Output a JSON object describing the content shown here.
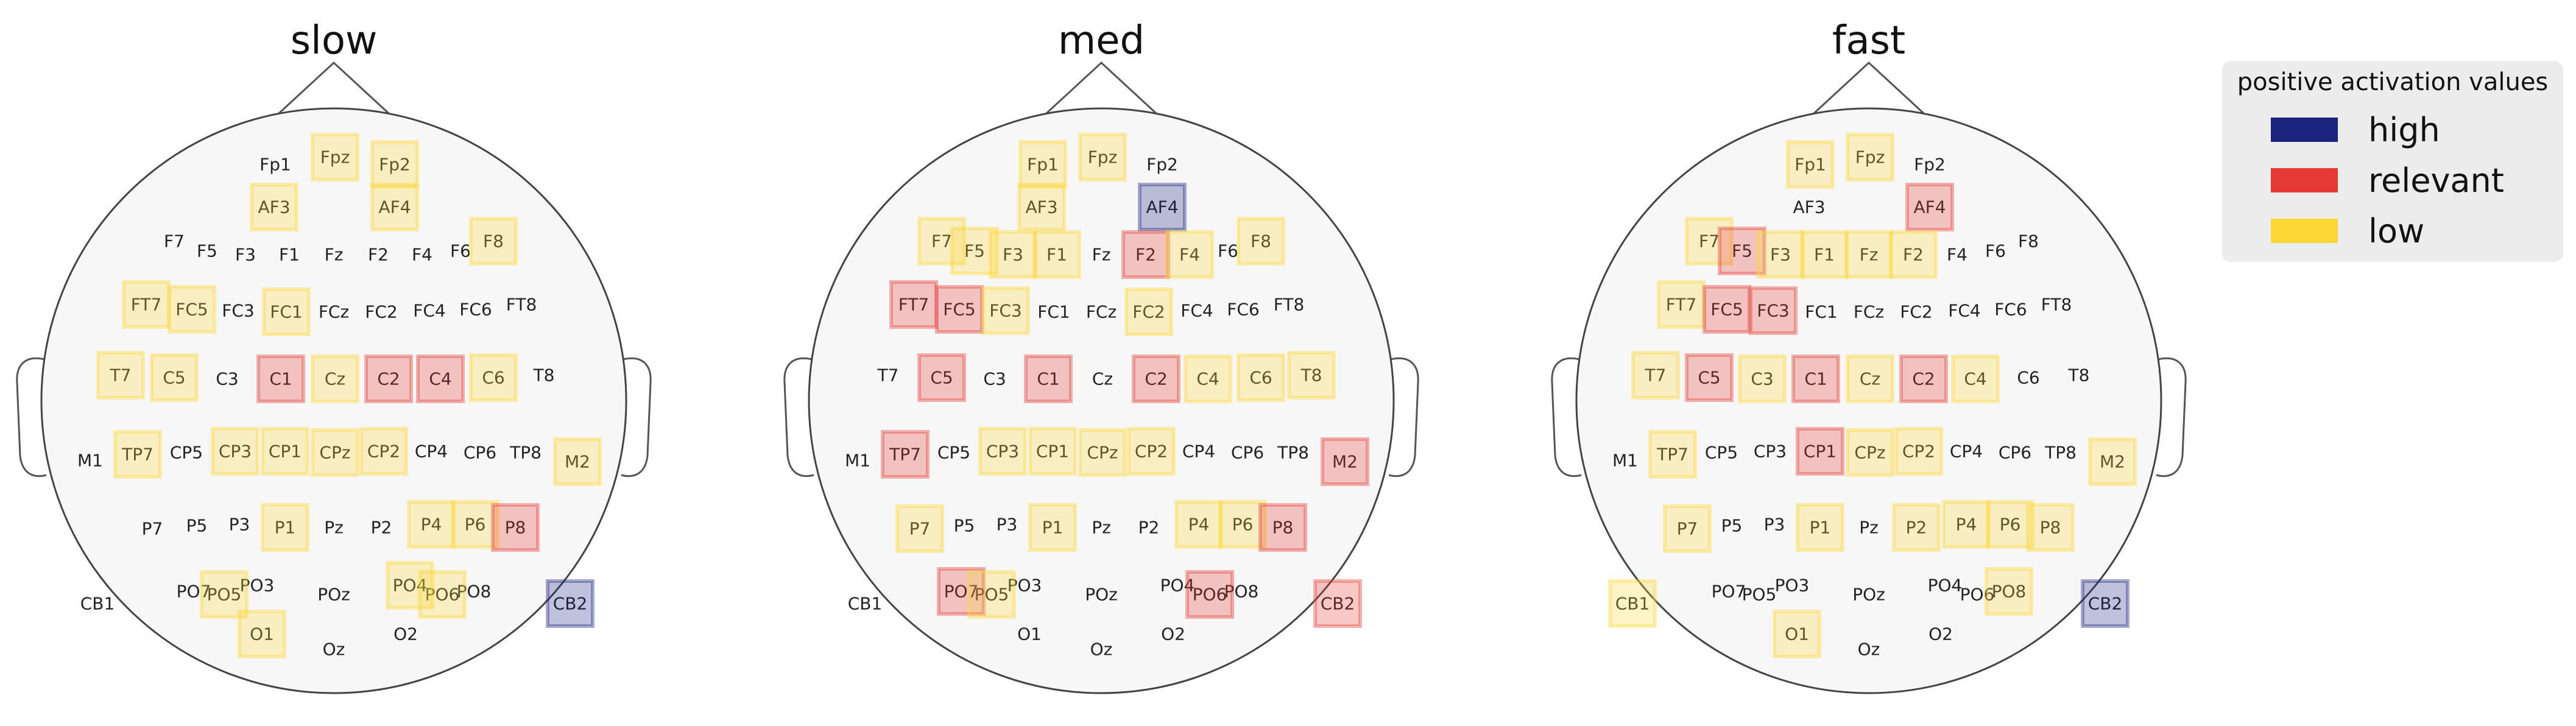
{
  "legend": {
    "title": "positive activation values",
    "items": [
      {
        "label": "high",
        "color": "#1a237e"
      },
      {
        "label": "relevant",
        "color": "#e53935"
      },
      {
        "label": "low",
        "color": "#fdd835"
      }
    ]
  },
  "channels": [
    "Fp1",
    "Fpz",
    "Fp2",
    "AF3",
    "AF4",
    "F7",
    "F5",
    "F3",
    "F1",
    "Fz",
    "F2",
    "F4",
    "F6",
    "F8",
    "FT7",
    "FC5",
    "FC3",
    "FC1",
    "FCz",
    "FC2",
    "FC4",
    "FC6",
    "FT8",
    "T7",
    "C5",
    "C3",
    "C1",
    "Cz",
    "C2",
    "C4",
    "C6",
    "T8",
    "M1",
    "TP7",
    "CP5",
    "CP3",
    "CP1",
    "CPz",
    "CP2",
    "CP4",
    "CP6",
    "TP8",
    "M2",
    "P7",
    "P5",
    "P3",
    "P1",
    "Pz",
    "P2",
    "P4",
    "P6",
    "P8",
    "CB1",
    "PO7",
    "PO5",
    "PO3",
    "POz",
    "PO4",
    "PO6",
    "PO8",
    "CB2",
    "O1",
    "Oz",
    "O2"
  ],
  "panels": [
    {
      "title": "slow",
      "markers": [
        {
          "ch": "Fpz",
          "level": "low"
        },
        {
          "ch": "Fp2",
          "level": "low"
        },
        {
          "ch": "AF3",
          "level": "low"
        },
        {
          "ch": "AF4",
          "level": "low"
        },
        {
          "ch": "F8",
          "level": "low"
        },
        {
          "ch": "FT7",
          "level": "low"
        },
        {
          "ch": "FC5",
          "level": "low"
        },
        {
          "ch": "FC1",
          "level": "low"
        },
        {
          "ch": "T7",
          "level": "low"
        },
        {
          "ch": "C5",
          "level": "low"
        },
        {
          "ch": "C1",
          "level": "relevant"
        },
        {
          "ch": "Cz",
          "level": "low"
        },
        {
          "ch": "C2",
          "level": "relevant"
        },
        {
          "ch": "C4",
          "level": "relevant"
        },
        {
          "ch": "C6",
          "level": "low"
        },
        {
          "ch": "TP7",
          "level": "low"
        },
        {
          "ch": "CP3",
          "level": "low"
        },
        {
          "ch": "CP1",
          "level": "low"
        },
        {
          "ch": "CPz",
          "level": "low"
        },
        {
          "ch": "CP2",
          "level": "low"
        },
        {
          "ch": "M2",
          "level": "low"
        },
        {
          "ch": "P1",
          "level": "low"
        },
        {
          "ch": "P4",
          "level": "low"
        },
        {
          "ch": "P6",
          "level": "low"
        },
        {
          "ch": "P8",
          "level": "relevant"
        },
        {
          "ch": "PO5",
          "level": "low"
        },
        {
          "ch": "PO4",
          "level": "low"
        },
        {
          "ch": "PO6",
          "level": "low"
        },
        {
          "ch": "O1",
          "level": "low"
        },
        {
          "ch": "CB2",
          "level": "high"
        }
      ]
    },
    {
      "title": "med",
      "markers": [
        {
          "ch": "Fp1",
          "level": "low"
        },
        {
          "ch": "Fpz",
          "level": "low"
        },
        {
          "ch": "AF3",
          "level": "low"
        },
        {
          "ch": "AF4",
          "level": "high"
        },
        {
          "ch": "F7",
          "level": "low"
        },
        {
          "ch": "F5",
          "level": "low"
        },
        {
          "ch": "F3",
          "level": "low"
        },
        {
          "ch": "F1",
          "level": "low"
        },
        {
          "ch": "F2",
          "level": "relevant"
        },
        {
          "ch": "F4",
          "level": "low"
        },
        {
          "ch": "F8",
          "level": "low"
        },
        {
          "ch": "FT7",
          "level": "relevant"
        },
        {
          "ch": "FC5",
          "level": "relevant"
        },
        {
          "ch": "FC3",
          "level": "low"
        },
        {
          "ch": "FC2",
          "level": "low"
        },
        {
          "ch": "C5",
          "level": "relevant"
        },
        {
          "ch": "C1",
          "level": "relevant"
        },
        {
          "ch": "C2",
          "level": "relevant"
        },
        {
          "ch": "C4",
          "level": "low"
        },
        {
          "ch": "C6",
          "level": "low"
        },
        {
          "ch": "T8",
          "level": "low"
        },
        {
          "ch": "TP7",
          "level": "relevant"
        },
        {
          "ch": "CP3",
          "level": "low"
        },
        {
          "ch": "CP1",
          "level": "low"
        },
        {
          "ch": "CPz",
          "level": "low"
        },
        {
          "ch": "CP2",
          "level": "low"
        },
        {
          "ch": "M2",
          "level": "relevant"
        },
        {
          "ch": "P7",
          "level": "low"
        },
        {
          "ch": "P1",
          "level": "low"
        },
        {
          "ch": "P4",
          "level": "low"
        },
        {
          "ch": "P6",
          "level": "low"
        },
        {
          "ch": "P8",
          "level": "relevant"
        },
        {
          "ch": "PO7",
          "level": "relevant"
        },
        {
          "ch": "PO5",
          "level": "low"
        },
        {
          "ch": "PO6",
          "level": "relevant"
        },
        {
          "ch": "CB2",
          "level": "relevant"
        }
      ]
    },
    {
      "title": "fast",
      "markers": [
        {
          "ch": "Fp1",
          "level": "low"
        },
        {
          "ch": "Fpz",
          "level": "low"
        },
        {
          "ch": "AF4",
          "level": "relevant"
        },
        {
          "ch": "F7",
          "level": "low"
        },
        {
          "ch": "F5",
          "level": "relevant"
        },
        {
          "ch": "F3",
          "level": "low"
        },
        {
          "ch": "F1",
          "level": "low"
        },
        {
          "ch": "Fz",
          "level": "low"
        },
        {
          "ch": "F2",
          "level": "low"
        },
        {
          "ch": "FT7",
          "level": "low"
        },
        {
          "ch": "FC5",
          "level": "relevant"
        },
        {
          "ch": "FC3",
          "level": "relevant"
        },
        {
          "ch": "T7",
          "level": "low"
        },
        {
          "ch": "C5",
          "level": "relevant"
        },
        {
          "ch": "C3",
          "level": "low"
        },
        {
          "ch": "C1",
          "level": "relevant"
        },
        {
          "ch": "Cz",
          "level": "low"
        },
        {
          "ch": "C2",
          "level": "relevant"
        },
        {
          "ch": "C4",
          "level": "low"
        },
        {
          "ch": "TP7",
          "level": "low"
        },
        {
          "ch": "CP1",
          "level": "relevant"
        },
        {
          "ch": "CPz",
          "level": "low"
        },
        {
          "ch": "CP2",
          "level": "low"
        },
        {
          "ch": "M2",
          "level": "low"
        },
        {
          "ch": "P7",
          "level": "low"
        },
        {
          "ch": "P1",
          "level": "low"
        },
        {
          "ch": "P2",
          "level": "low"
        },
        {
          "ch": "P4",
          "level": "low"
        },
        {
          "ch": "P6",
          "level": "low"
        },
        {
          "ch": "P8",
          "level": "low"
        },
        {
          "ch": "CB1",
          "level": "low"
        },
        {
          "ch": "PO8",
          "level": "low"
        },
        {
          "ch": "O1",
          "level": "low"
        },
        {
          "ch": "CB2",
          "level": "high"
        }
      ]
    }
  ]
}
